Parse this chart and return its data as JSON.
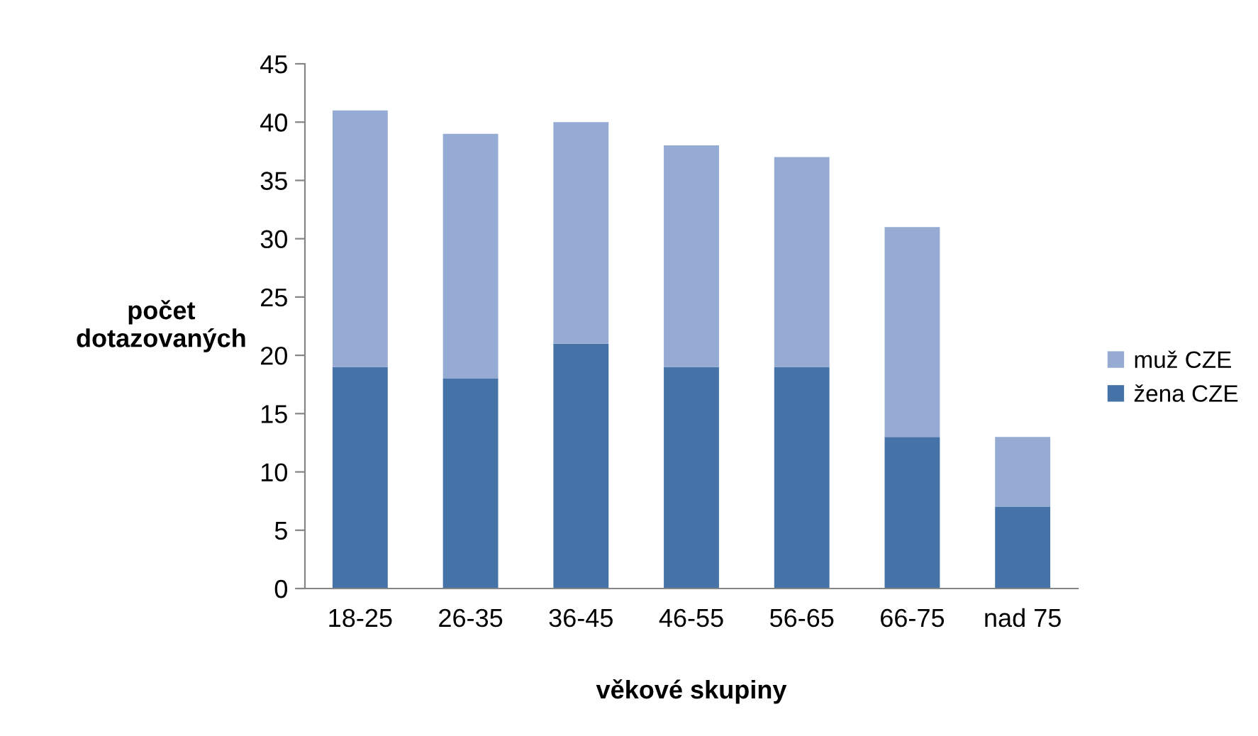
{
  "chart_data": {
    "type": "bar",
    "stacked": true,
    "xlabel": "věkové skupiny",
    "ylabel": "počet\ndotazovaných",
    "categories": [
      "18-25",
      "26-35",
      "36-45",
      "46-55",
      "56-65",
      "66-75",
      "nad 75"
    ],
    "series": [
      {
        "name": "žena CZE",
        "color": "#4573a7",
        "values": [
          19,
          18,
          21,
          19,
          19,
          13,
          7
        ]
      },
      {
        "name": "muž CZE",
        "color": "#95abd3",
        "values": [
          22,
          21,
          19,
          19,
          18,
          18,
          6
        ]
      }
    ],
    "ylim": [
      0,
      45
    ],
    "yticks": [
      0,
      5,
      10,
      15,
      20,
      25,
      30,
      35,
      40,
      45
    ],
    "grid": false,
    "legend": "right"
  }
}
